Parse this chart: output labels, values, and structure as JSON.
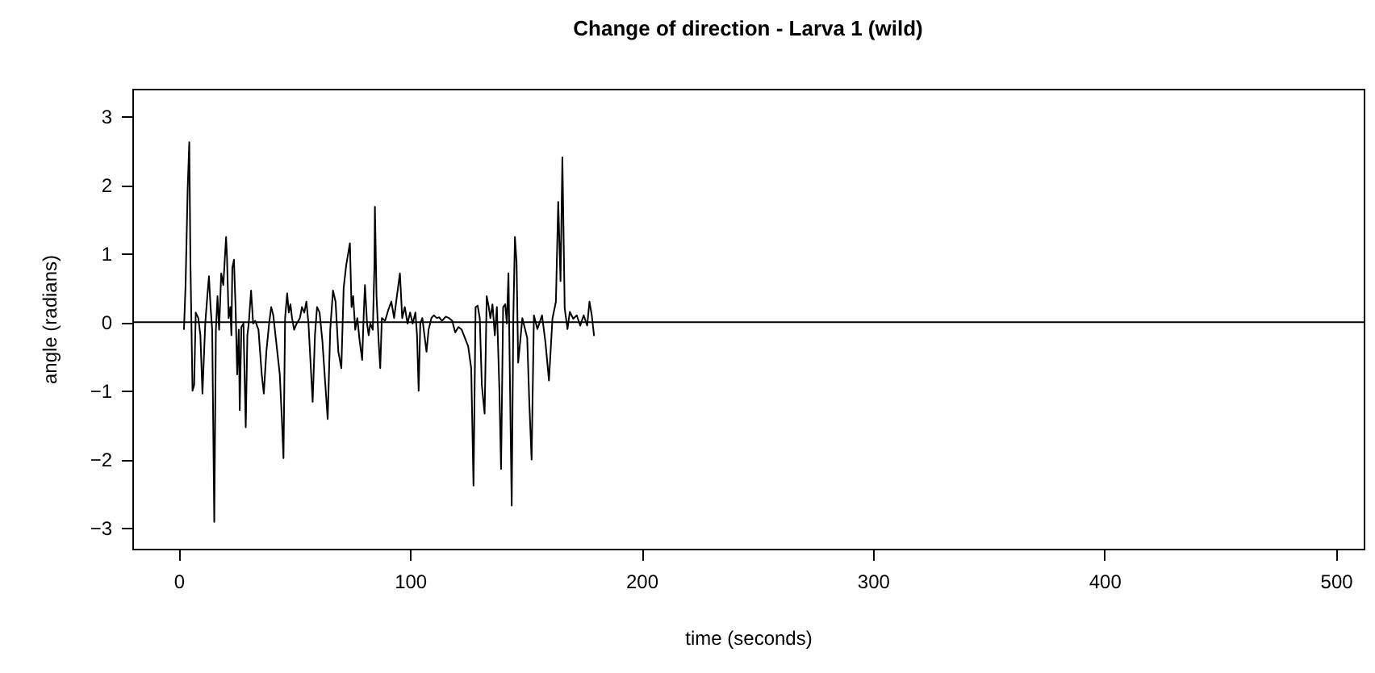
{
  "chart_data": {
    "type": "line",
    "title": "Change of direction - Larva 1 (wild)",
    "xlabel": "time (seconds)",
    "ylabel": "angle (radians)",
    "xlim": [
      -20,
      512
    ],
    "xticks": [
      0,
      100,
      200,
      300,
      400,
      500
    ],
    "ylim": [
      -3.3,
      3.4
    ],
    "yticks": [
      -3,
      -2,
      -1,
      0,
      1,
      2,
      3
    ],
    "ref_lines": [
      {
        "axis": "y",
        "value": 0,
        "color": "#000000"
      }
    ],
    "x": [
      2.3,
      3.0,
      3.9,
      4.6,
      5.1,
      6.0,
      6.7,
      7.4,
      8.5,
      9.4,
      10.3,
      11.5,
      12.4,
      13.1,
      13.8,
      14.5,
      15.4,
      16.1,
      16.8,
      17.5,
      18.4,
      19.3,
      20.5,
      20.9,
      21.6,
      22.3,
      22.8,
      23.2,
      23.9,
      24.6,
      25.3,
      26.0,
      26.4,
      27.1,
      28.0,
      29.0,
      29.7,
      30.3,
      31.3,
      32.2,
      33.1,
      34.5,
      35.9,
      36.8,
      37.9,
      39.1,
      40.0,
      40.9,
      42.1,
      43.7,
      44.6,
      45.3,
      46.0,
      46.9,
      47.6,
      48.3,
      49.0,
      49.9,
      51.0,
      52.4,
      53.3,
      54.3,
      55.2,
      56.1,
      57.0,
      57.9,
      58.9,
      59.8,
      60.9,
      62.1,
      63.4,
      64.4,
      65.5,
      66.7,
      67.8,
      69.0,
      70.3,
      71.3,
      72.4,
      74.0,
      74.7,
      75.4,
      76.3,
      77.2,
      78.2,
      79.3,
      80.0,
      80.5,
      81.4,
      82.1,
      82.8,
      83.9,
      84.6,
      84.8,
      85.5,
      86.4,
      87.1,
      87.8,
      89.2,
      90.6,
      91.9,
      93.1,
      94.3,
      95.6,
      96.6,
      97.7,
      98.9,
      100.0,
      101.1,
      102.3,
      103.0,
      103.7,
      104.4,
      105.3,
      106.2,
      107.1,
      108.0,
      109.2,
      110.3,
      111.5,
      112.6,
      113.8,
      115.4,
      116.8,
      118.2,
      119.5,
      120.9,
      122.3,
      123.7,
      125.1,
      126.4,
      127.4,
      128.3,
      129.2,
      130.1,
      131.0,
      132.2,
      133.1,
      134.0,
      134.7,
      135.6,
      136.6,
      137.5,
      138.6,
      139.3,
      140.2,
      141.1,
      141.8,
      142.5,
      143.2,
      143.9,
      144.6,
      145.3,
      146.0,
      146.7,
      147.6,
      148.5,
      150.6,
      151.5,
      152.5,
      153.5,
      155.0,
      157.0,
      158.5,
      160.0,
      161.5,
      163.0,
      164.0,
      165.0,
      165.8,
      166.8,
      168.0,
      169.0,
      170.5,
      172.0,
      173.5,
      175.0,
      176.5,
      177.5,
      178.5,
      179.5
    ],
    "series": [
      {
        "color": "#000000",
        "values": [
          -0.11,
          0.54,
          1.93,
          2.62,
          0.87,
          -1.0,
          -0.92,
          0.14,
          0.06,
          -0.19,
          -1.04,
          -0.02,
          0.38,
          0.67,
          0.22,
          -0.11,
          -2.91,
          -0.11,
          0.38,
          -0.11,
          0.71,
          0.54,
          1.24,
          0.95,
          0.06,
          0.22,
          -0.19,
          0.79,
          0.91,
          0.22,
          -0.76,
          -0.11,
          -1.28,
          -0.07,
          -0.02,
          -1.53,
          -0.19,
          -0.02,
          0.46,
          -0.02,
          0.02,
          -0.11,
          -0.76,
          -1.04,
          -0.43,
          -0.02,
          0.22,
          0.1,
          -0.27,
          -0.76,
          -1.41,
          -1.98,
          0.06,
          0.42,
          0.14,
          0.26,
          0.06,
          -0.11,
          -0.02,
          0.06,
          0.22,
          0.14,
          0.3,
          -0.02,
          -0.59,
          -1.16,
          -0.19,
          0.22,
          0.14,
          -0.27,
          -0.92,
          -1.41,
          -0.11,
          0.46,
          0.3,
          -0.43,
          -0.67,
          0.5,
          0.83,
          1.15,
          0.22,
          0.38,
          -0.11,
          0.06,
          -0.27,
          -0.55,
          0.14,
          0.54,
          -0.02,
          -0.19,
          -0.02,
          -0.11,
          0.83,
          1.68,
          0.38,
          -0.27,
          -0.67,
          0.06,
          0.02,
          0.18,
          0.3,
          0.06,
          0.38,
          0.71,
          0.06,
          0.22,
          -0.02,
          0.14,
          -0.02,
          0.14,
          -0.19,
          -1.0,
          -0.02,
          0.06,
          -0.19,
          -0.43,
          -0.11,
          0.06,
          0.1,
          0.06,
          0.07,
          0.02,
          0.08,
          0.06,
          0.02,
          -0.15,
          -0.07,
          -0.11,
          -0.23,
          -0.35,
          -0.67,
          -2.38,
          0.22,
          0.24,
          0.06,
          -0.92,
          -1.33,
          0.38,
          0.22,
          0.06,
          0.26,
          -0.19,
          0.22,
          -1.0,
          -2.14,
          0.22,
          0.26,
          -0.02,
          0.71,
          -1.0,
          -2.67,
          0.06,
          1.24,
          0.87,
          -0.59,
          -0.27,
          0.06,
          -0.23,
          -1.16,
          -2.0,
          0.1,
          -0.1,
          0.1,
          -0.3,
          -0.85,
          0.05,
          0.3,
          1.75,
          0.6,
          2.4,
          0.2,
          -0.1,
          0.15,
          0.05,
          0.1,
          -0.05,
          0.1,
          -0.05,
          0.3,
          0.1,
          -0.2
        ]
      }
    ]
  }
}
